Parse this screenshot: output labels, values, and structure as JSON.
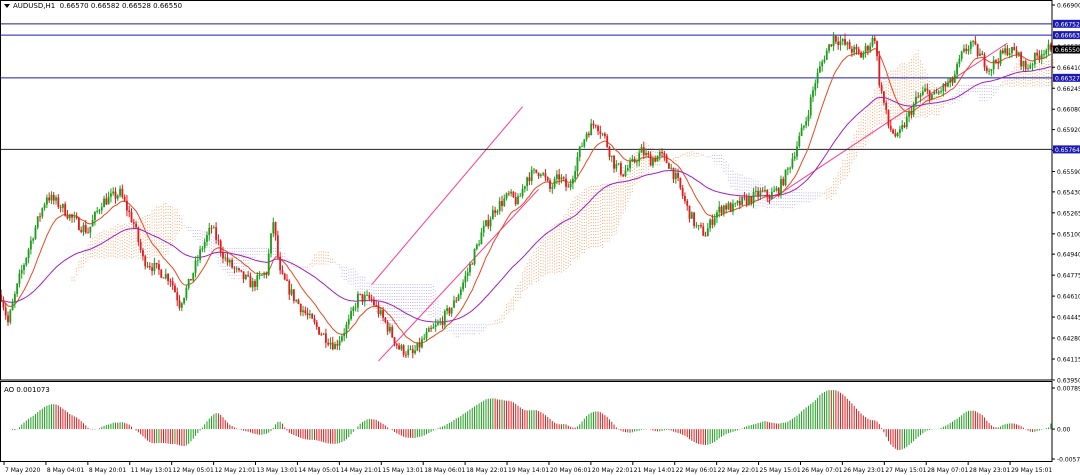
{
  "header": {
    "symbol": "AUDUSD,H1",
    "ohlc": "0.66570 0.66582 0.66528 0.66550"
  },
  "ao_header": {
    "label": "AO 0.001073"
  },
  "colors": {
    "bull": "#1a9e1a",
    "bear": "#e01b1b",
    "level": "#1a1ab0",
    "trend": "#ff3a8c",
    "ma_fast": "#e8491f",
    "ma_slow": "#a11fc0",
    "cloud_bull": "#e9823a",
    "cloud_bear": "#a59be0"
  },
  "chart_data": {
    "type": "candlestick",
    "symbol": "AUDUSD",
    "timeframe": "H1",
    "y_ticks": [
      "0.66900",
      "0.66575",
      "0.66410",
      "0.66245",
      "0.66080",
      "0.65920",
      "0.65755",
      "0.65590",
      "0.65430",
      "0.65265",
      "0.65100",
      "0.64940",
      "0.64775",
      "0.64610",
      "0.64445",
      "0.64280",
      "0.64115",
      "0.63950"
    ],
    "ylim": [
      0.6395,
      0.669
    ],
    "x_labels": [
      "7 May 2020",
      "8 May 04:01",
      "8 May 20:01",
      "11 May 13:01",
      "12 May 05:01",
      "12 May 21:01",
      "13 May 13:01",
      "14 May 05:01",
      "14 May 21:01",
      "15 May 13:01",
      "18 May 06:01",
      "18 May 22:01",
      "19 May 14:01",
      "20 May 06:01",
      "20 May 22:01",
      "21 May 14:01",
      "22 May 06:01",
      "22 May 22:01",
      "25 May 15:01",
      "26 May 07:01",
      "26 May 23:01",
      "27 May 15:01",
      "28 May 07:01",
      "28 May 23:01",
      "29 May 15:01"
    ],
    "levels": [
      {
        "label": "0.66752",
        "value": 0.66752
      },
      {
        "label": "0.66663",
        "value": 0.66663
      },
      {
        "label": "0.66327",
        "value": 0.66327
      },
      {
        "label": "0.65764",
        "value": 0.65764
      }
    ],
    "current_price": {
      "label": "0.66550",
      "value": 0.6655
    },
    "price_path": [
      [
        0,
        0.6462
      ],
      [
        3,
        0.644
      ],
      [
        8,
        0.6475
      ],
      [
        14,
        0.651
      ],
      [
        20,
        0.654
      ],
      [
        26,
        0.6532
      ],
      [
        32,
        0.652
      ],
      [
        38,
        0.6512
      ],
      [
        44,
        0.6535
      ],
      [
        50,
        0.654
      ],
      [
        52,
        0.6542
      ],
      [
        58,
        0.6518
      ],
      [
        62,
        0.649
      ],
      [
        68,
        0.6482
      ],
      [
        74,
        0.6475
      ],
      [
        78,
        0.6455
      ],
      [
        82,
        0.647
      ],
      [
        88,
        0.65
      ],
      [
        92,
        0.6515
      ],
      [
        98,
        0.649
      ],
      [
        104,
        0.6478
      ],
      [
        110,
        0.647
      ],
      [
        116,
        0.648
      ],
      [
        119,
        0.652
      ],
      [
        122,
        0.6478
      ],
      [
        128,
        0.646
      ],
      [
        134,
        0.6445
      ],
      [
        140,
        0.6432
      ],
      [
        146,
        0.6422
      ],
      [
        152,
        0.644
      ],
      [
        156,
        0.646
      ],
      [
        162,
        0.6458
      ],
      [
        168,
        0.644
      ],
      [
        174,
        0.642
      ],
      [
        180,
        0.6415
      ],
      [
        186,
        0.643
      ],
      [
        192,
        0.644
      ],
      [
        198,
        0.6455
      ],
      [
        204,
        0.648
      ],
      [
        210,
        0.651
      ],
      [
        216,
        0.653
      ],
      [
        222,
        0.654
      ],
      [
        226,
        0.6535
      ],
      [
        230,
        0.6555
      ],
      [
        236,
        0.656
      ],
      [
        240,
        0.6545
      ],
      [
        244,
        0.6555
      ],
      [
        248,
        0.6545
      ],
      [
        252,
        0.657
      ],
      [
        256,
        0.659
      ],
      [
        260,
        0.6598
      ],
      [
        264,
        0.6585
      ],
      [
        268,
        0.6565
      ],
      [
        272,
        0.6558
      ],
      [
        276,
        0.6565
      ],
      [
        280,
        0.6575
      ],
      [
        284,
        0.6568
      ],
      [
        288,
        0.6572
      ],
      [
        292,
        0.6565
      ],
      [
        296,
        0.655
      ],
      [
        300,
        0.653
      ],
      [
        304,
        0.6515
      ],
      [
        308,
        0.651
      ],
      [
        312,
        0.6525
      ],
      [
        316,
        0.6532
      ],
      [
        320,
        0.653
      ],
      [
        324,
        0.6535
      ],
      [
        328,
        0.6538
      ],
      [
        332,
        0.6542
      ],
      [
        336,
        0.654
      ],
      [
        340,
        0.6545
      ],
      [
        344,
        0.656
      ],
      [
        348,
        0.658
      ],
      [
        352,
        0.66
      ],
      [
        356,
        0.663
      ],
      [
        360,
        0.665
      ],
      [
        364,
        0.6665
      ],
      [
        368,
        0.666
      ],
      [
        372,
        0.6655
      ],
      [
        376,
        0.665
      ],
      [
        380,
        0.666
      ],
      [
        382,
        0.6665
      ],
      [
        384,
        0.663
      ],
      [
        388,
        0.6595
      ],
      [
        392,
        0.6585
      ],
      [
        396,
        0.66
      ],
      [
        400,
        0.6615
      ],
      [
        404,
        0.6622
      ],
      [
        408,
        0.6618
      ],
      [
        412,
        0.6625
      ],
      [
        416,
        0.663
      ],
      [
        420,
        0.665
      ],
      [
        424,
        0.666
      ],
      [
        428,
        0.665
      ],
      [
        432,
        0.664
      ],
      [
        436,
        0.6648
      ],
      [
        440,
        0.6655
      ],
      [
        444,
        0.6652
      ],
      [
        448,
        0.664
      ],
      [
        452,
        0.6648
      ],
      [
        456,
        0.6655
      ],
      [
        460,
        0.6655
      ]
    ],
    "ao_range": [
      -0.005743,
      0.007897
    ],
    "ao_ticks": [
      "0.007897",
      "0.00",
      "-0.005743"
    ],
    "ao_current": 0.001073,
    "grid": false
  }
}
